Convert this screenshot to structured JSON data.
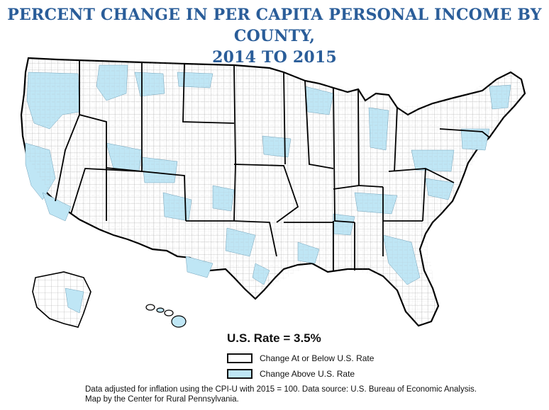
{
  "title": {
    "line1": "Percent Change in Per Capita Personal Income by County,",
    "line2": "2014 to 2015"
  },
  "rate_label": "U.S. Rate = 3.5%",
  "legend": [
    {
      "label": "Change At or Below U.S. Rate",
      "color": "#ffffff"
    },
    {
      "label": "Change Above U.S. Rate",
      "color": "#bfe6f5"
    }
  ],
  "source": {
    "line1": "Data adjusted for inflation using the CPI-U with 2015 = 100. Data source: U.S. Bureau of Economic Analysis.",
    "line2": "Map by the Center for Rural Pennsylvania."
  },
  "colors": {
    "title": "#2a5d99",
    "above": "#bfe6f5",
    "below": "#ffffff",
    "state_border": "#000000",
    "county_border": "#9a9a9a"
  }
}
